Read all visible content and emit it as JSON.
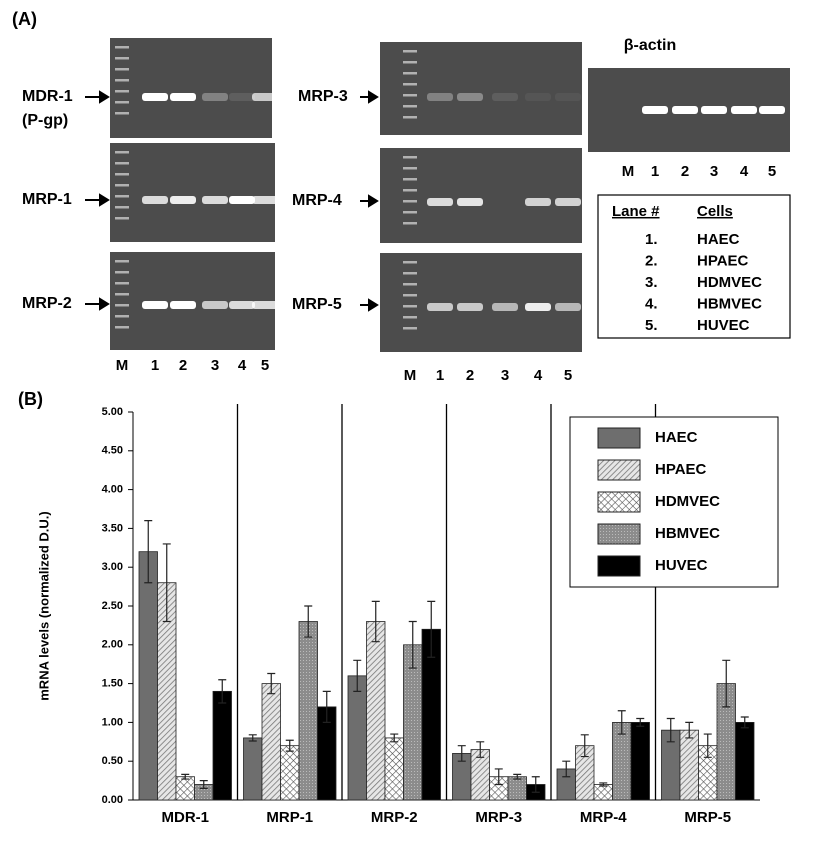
{
  "figure": {
    "panel_a_label": "(A)",
    "panel_b_label": "(B)"
  },
  "gels": {
    "labels": [
      "MDR-1",
      "(P-gp)",
      "MRP-1",
      "MRP-2",
      "MRP-3",
      "MRP-4",
      "MRP-5"
    ],
    "actin_title": "β-actin",
    "lanes": [
      "M",
      "1",
      "2",
      "3",
      "4",
      "5"
    ]
  },
  "lane_table": {
    "headers": [
      "Lane #",
      "Cells"
    ],
    "rows": [
      [
        "1.",
        "HAEC"
      ],
      [
        "2.",
        "HPAEC"
      ],
      [
        "3.",
        "HDMVEC"
      ],
      [
        "4.",
        "HBMVEC"
      ],
      [
        "5.",
        "HUVEC"
      ]
    ]
  },
  "chart_data": {
    "type": "bar",
    "y_label": "mRNA levels (normalized D.U.)",
    "categories": [
      "MDR-1",
      "MRP-1",
      "MRP-2",
      "MRP-3",
      "MRP-4",
      "MRP-5"
    ],
    "series": [
      {
        "name": "HAEC",
        "color": "#6e6e6e",
        "pattern": "solid",
        "values": [
          3.2,
          0.8,
          1.6,
          0.6,
          0.4,
          0.9
        ],
        "errors": [
          0.4,
          0.04,
          0.2,
          0.1,
          0.1,
          0.15
        ]
      },
      {
        "name": "HPAEC",
        "color": "#c8c8c8",
        "pattern": "diagonal",
        "values": [
          2.8,
          1.5,
          2.3,
          0.65,
          0.7,
          0.9
        ],
        "errors": [
          0.5,
          0.13,
          0.26,
          0.1,
          0.14,
          0.1
        ]
      },
      {
        "name": "HDMVEC",
        "color": "#ffffff",
        "pattern": "cross",
        "values": [
          0.3,
          0.7,
          0.8,
          0.3,
          0.2,
          0.7
        ],
        "errors": [
          0.03,
          0.07,
          0.05,
          0.1,
          0.02,
          0.15
        ]
      },
      {
        "name": "HBMVEC",
        "color": "#8c8c8c",
        "pattern": "dots",
        "values": [
          0.2,
          2.3,
          2.0,
          0.3,
          1.0,
          1.5
        ],
        "errors": [
          0.05,
          0.2,
          0.3,
          0.03,
          0.15,
          0.3
        ]
      },
      {
        "name": "HUVEC",
        "color": "#000000",
        "pattern": "solid",
        "values": [
          1.4,
          1.2,
          2.2,
          0.2,
          1.0,
          1.0
        ],
        "errors": [
          0.15,
          0.2,
          0.36,
          0.1,
          0.05,
          0.07
        ]
      }
    ],
    "ylim": [
      0,
      5
    ],
    "yticks": [
      {
        "value": 0,
        "label": "0.00"
      },
      {
        "value": 0.5,
        "label": "0.50"
      },
      {
        "value": 1,
        "label": "1.00"
      },
      {
        "value": 1.5,
        "label": "1.50"
      },
      {
        "value": 2,
        "label": "2.00"
      },
      {
        "value": 2.5,
        "label": "2.50"
      },
      {
        "value": 3,
        "label": "3.00"
      },
      {
        "value": 3.5,
        "label": "3.50"
      },
      {
        "value": 4,
        "label": "4.00"
      },
      {
        "value": 4.5,
        "label": "4.50"
      },
      {
        "value": 5,
        "label": "5.00"
      }
    ],
    "legend": "upper right",
    "grid": false
  }
}
